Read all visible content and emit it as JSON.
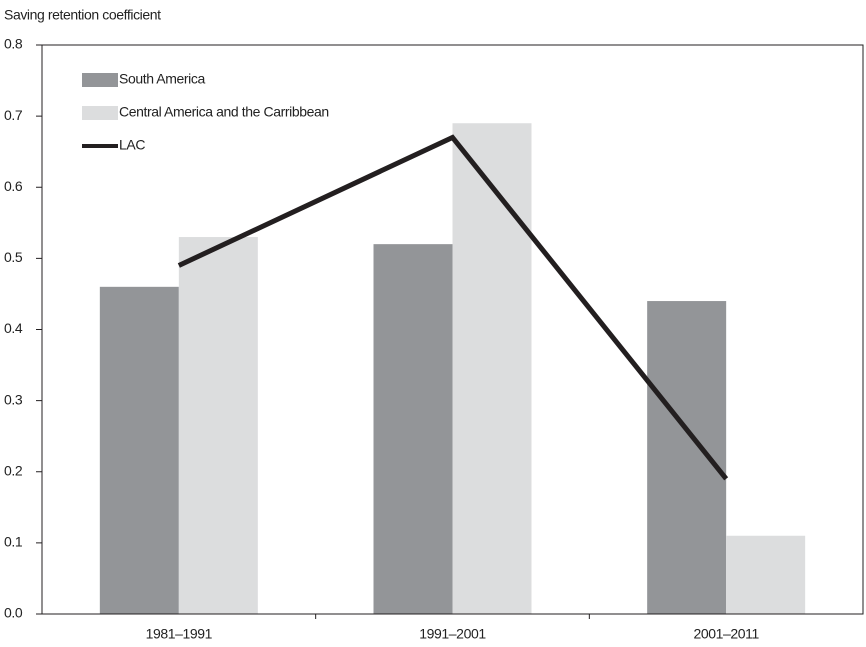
{
  "chart_data": {
    "type": "bar",
    "title": "Saving retention coefficient",
    "categories": [
      "1981–1991",
      "1991–2001",
      "2001–2011"
    ],
    "series": [
      {
        "name": "South America",
        "color": "#939598",
        "values": [
          0.46,
          0.52,
          0.44
        ]
      },
      {
        "name": "Central America and the Carribbean",
        "color": "#dcddde",
        "values": [
          0.53,
          0.69,
          0.11
        ]
      },
      {
        "name": "LAC",
        "color": "#231f20",
        "type": "line",
        "values": [
          0.49,
          0.67,
          0.19
        ]
      }
    ],
    "ylim": [
      0,
      0.8
    ],
    "yticks": [
      {
        "value": 0,
        "label": "0.0"
      },
      0.1,
      0.2,
      0.3,
      0.4,
      0.5,
      0.6,
      0.7,
      0.8
    ],
    "legend": "upper left"
  }
}
